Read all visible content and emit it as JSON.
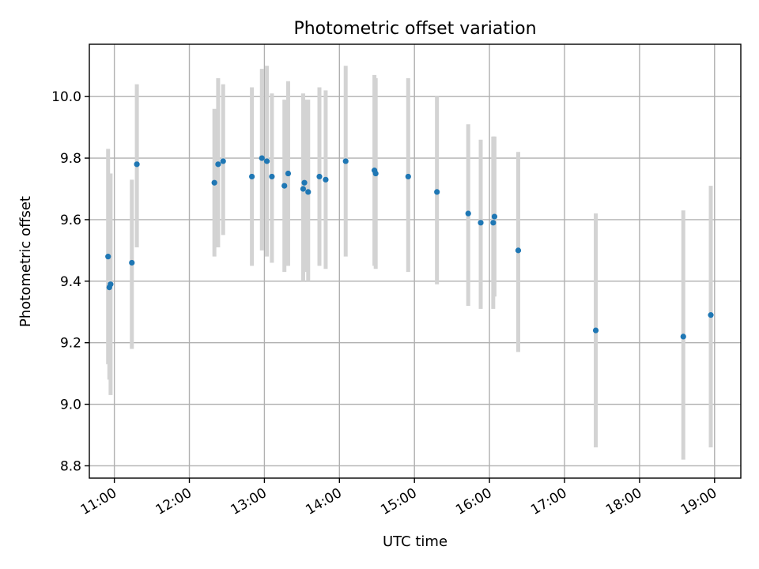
{
  "chart_data": {
    "type": "scatter",
    "title": "Photometric offset variation",
    "xlabel": "UTC time",
    "ylabel": "Photometric offset",
    "xlim": [
      "10:40",
      "19:21"
    ],
    "ylim": [
      8.76,
      10.17
    ],
    "x_ticks": [
      "11:00",
      "12:00",
      "13:00",
      "14:00",
      "15:00",
      "16:00",
      "17:00",
      "18:00",
      "19:00"
    ],
    "y_ticks": [
      8.8,
      9.0,
      9.2,
      9.4,
      9.6,
      9.8,
      10.0
    ],
    "grid": true,
    "marker_color": "#1f77b4",
    "errorbar_color": "#d3d3d3",
    "points": [
      {
        "t": "10:55",
        "y": 9.48,
        "lo": 9.13,
        "hi": 9.83
      },
      {
        "t": "10:56",
        "y": 9.38,
        "lo": 9.08,
        "hi": 9.68
      },
      {
        "t": "10:57",
        "y": 9.39,
        "lo": 9.03,
        "hi": 9.75
      },
      {
        "t": "11:14",
        "y": 9.46,
        "lo": 9.18,
        "hi": 9.73
      },
      {
        "t": "11:18",
        "y": 9.78,
        "lo": 9.51,
        "hi": 10.04
      },
      {
        "t": "12:20",
        "y": 9.72,
        "lo": 9.48,
        "hi": 9.96
      },
      {
        "t": "12:23",
        "y": 9.78,
        "lo": 9.51,
        "hi": 10.06
      },
      {
        "t": "12:27",
        "y": 9.79,
        "lo": 9.55,
        "hi": 10.04
      },
      {
        "t": "12:50",
        "y": 9.74,
        "lo": 9.45,
        "hi": 10.03
      },
      {
        "t": "12:58",
        "y": 9.8,
        "lo": 9.5,
        "hi": 10.09
      },
      {
        "t": "13:02",
        "y": 9.79,
        "lo": 9.48,
        "hi": 10.1
      },
      {
        "t": "13:06",
        "y": 9.74,
        "lo": 9.46,
        "hi": 10.01
      },
      {
        "t": "13:16",
        "y": 9.71,
        "lo": 9.43,
        "hi": 9.99
      },
      {
        "t": "13:19",
        "y": 9.75,
        "lo": 9.45,
        "hi": 10.05
      },
      {
        "t": "13:31",
        "y": 9.7,
        "lo": 9.4,
        "hi": 10.01
      },
      {
        "t": "13:32",
        "y": 9.72,
        "lo": 9.43,
        "hi": 9.99
      },
      {
        "t": "13:35",
        "y": 9.69,
        "lo": 9.4,
        "hi": 9.99
      },
      {
        "t": "13:44",
        "y": 9.74,
        "lo": 9.45,
        "hi": 10.03
      },
      {
        "t": "13:49",
        "y": 9.73,
        "lo": 9.44,
        "hi": 10.02
      },
      {
        "t": "14:05",
        "y": 9.79,
        "lo": 9.48,
        "hi": 10.1
      },
      {
        "t": "14:28",
        "y": 9.76,
        "lo": 9.45,
        "hi": 10.07
      },
      {
        "t": "14:29",
        "y": 9.75,
        "lo": 9.44,
        "hi": 10.06
      },
      {
        "t": "14:55",
        "y": 9.74,
        "lo": 9.43,
        "hi": 10.06
      },
      {
        "t": "15:18",
        "y": 9.69,
        "lo": 9.39,
        "hi": 10.0
      },
      {
        "t": "15:43",
        "y": 9.62,
        "lo": 9.32,
        "hi": 9.91
      },
      {
        "t": "15:53",
        "y": 9.59,
        "lo": 9.31,
        "hi": 9.86
      },
      {
        "t": "16:03",
        "y": 9.59,
        "lo": 9.31,
        "hi": 9.87
      },
      {
        "t": "16:04",
        "y": 9.61,
        "lo": 9.35,
        "hi": 9.87
      },
      {
        "t": "16:23",
        "y": 9.5,
        "lo": 9.17,
        "hi": 9.82
      },
      {
        "t": "17:25",
        "y": 9.24,
        "lo": 8.86,
        "hi": 9.62
      },
      {
        "t": "18:35",
        "y": 9.22,
        "lo": 8.82,
        "hi": 9.63
      },
      {
        "t": "18:57",
        "y": 9.29,
        "lo": 8.86,
        "hi": 9.71
      }
    ]
  }
}
